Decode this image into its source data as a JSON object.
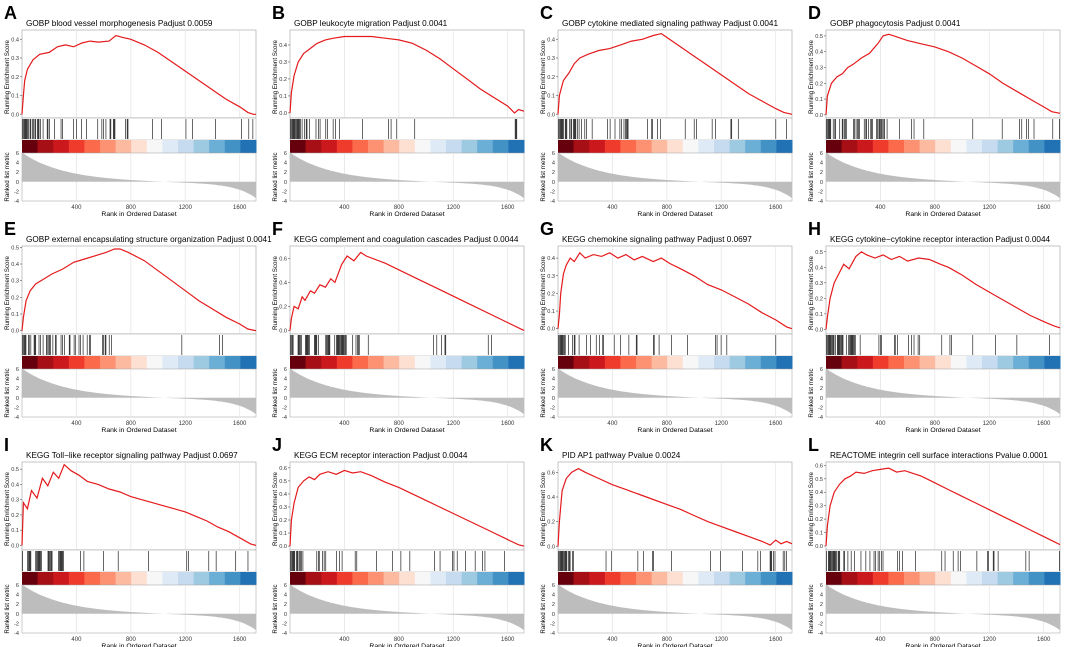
{
  "figure": {
    "description_free": true,
    "colors": {
      "curve": "#e41a1c",
      "hit_line": "#000000",
      "metric_fill": "#bdbdbd",
      "grid": "#e6e6e6",
      "heat": [
        "#67000d",
        "#a50f15",
        "#cb181d",
        "#ef3b2c",
        "#fb6a4a",
        "#fc9272",
        "#fcbba1",
        "#fee0d2",
        "#f7f7f7",
        "#deebf7",
        "#c6dbef",
        "#9ecae1",
        "#6baed6",
        "#4292c6",
        "#2171b5"
      ]
    }
  },
  "chart_data": [
    {
      "letter": "A",
      "type": "line",
      "title": "GOBP blood vessel morphogenesis Padjust 0.0059",
      "ylabel": "Running Enrichment Score",
      "metric_ylabel": "Ranked list metric",
      "xlabel": "Rank in Ordered Dataset",
      "xticks": [
        400,
        800,
        1200,
        1600
      ],
      "xlim": [
        0,
        1720
      ],
      "ylim": [
        -0.02,
        0.46
      ],
      "yticks": [
        0.0,
        0.1,
        0.2,
        0.3,
        0.4
      ],
      "metric_ylim": [
        -4,
        6
      ],
      "metric_yticks": [
        -4,
        -2,
        0,
        2,
        4,
        6
      ],
      "es_curve": {
        "x": [
          0,
          10,
          20,
          40,
          80,
          130,
          200,
          260,
          320,
          380,
          440,
          500,
          560,
          640,
          690,
          740,
          800,
          900,
          1000,
          1100,
          1200,
          1300,
          1400,
          1500,
          1600,
          1660,
          1700,
          1720
        ],
        "y": [
          0.0,
          0.1,
          0.18,
          0.24,
          0.29,
          0.32,
          0.33,
          0.36,
          0.37,
          0.36,
          0.38,
          0.39,
          0.385,
          0.39,
          0.42,
          0.41,
          0.4,
          0.37,
          0.33,
          0.28,
          0.23,
          0.18,
          0.13,
          0.08,
          0.04,
          0.01,
          0.0,
          0.0
        ]
      }
    },
    {
      "letter": "B",
      "type": "line",
      "title": "GOBP leukocyte migration Padjust 0.0041",
      "ylabel": "Running Enrichment Score",
      "metric_ylabel": "Ranked list metric",
      "xlabel": "Rank in Ordered Dataset",
      "xticks": [
        400,
        800,
        1200,
        1600
      ],
      "xlim": [
        0,
        1720
      ],
      "ylim": [
        -0.03,
        0.5
      ],
      "yticks": [
        0.0,
        0.1,
        0.2,
        0.3,
        0.4
      ],
      "metric_ylim": [
        -4,
        6
      ],
      "metric_yticks": [
        -4,
        -2,
        0,
        2,
        4,
        6
      ],
      "es_curve": {
        "x": [
          0,
          10,
          30,
          60,
          100,
          150,
          200,
          260,
          320,
          400,
          500,
          600,
          700,
          800,
          900,
          1000,
          1100,
          1200,
          1300,
          1400,
          1500,
          1600,
          1650,
          1680,
          1720
        ],
        "y": [
          0.0,
          0.12,
          0.22,
          0.3,
          0.35,
          0.38,
          0.41,
          0.43,
          0.44,
          0.45,
          0.45,
          0.45,
          0.44,
          0.43,
          0.41,
          0.37,
          0.32,
          0.26,
          0.2,
          0.14,
          0.09,
          0.04,
          0.0,
          0.02,
          0.01
        ]
      }
    },
    {
      "letter": "C",
      "type": "line",
      "title": "GOBP cytokine mediated signaling pathway Padjust 0.0041",
      "ylabel": "Running Enrichment Score",
      "metric_ylabel": "Ranked list metric",
      "xlabel": "Rank in Ordered Dataset",
      "xticks": [
        400,
        800,
        1200,
        1600
      ],
      "xlim": [
        0,
        1720
      ],
      "ylim": [
        -0.02,
        0.46
      ],
      "yticks": [
        0.0,
        0.1,
        0.2,
        0.3,
        0.4
      ],
      "metric_ylim": [
        -4,
        6
      ],
      "metric_yticks": [
        -4,
        -2,
        0,
        2,
        4,
        6
      ],
      "es_curve": {
        "x": [
          0,
          10,
          40,
          80,
          120,
          160,
          220,
          300,
          380,
          460,
          540,
          620,
          700,
          760,
          800,
          900,
          1000,
          1100,
          1200,
          1300,
          1400,
          1500,
          1600,
          1660,
          1720
        ],
        "y": [
          0.0,
          0.1,
          0.18,
          0.22,
          0.27,
          0.3,
          0.32,
          0.34,
          0.35,
          0.37,
          0.39,
          0.4,
          0.42,
          0.43,
          0.41,
          0.36,
          0.31,
          0.26,
          0.21,
          0.16,
          0.11,
          0.07,
          0.03,
          0.01,
          0.0
        ]
      }
    },
    {
      "letter": "D",
      "type": "line",
      "title": "GOBP phagocytosis Padjust 0.0041",
      "ylabel": "Running Enrichment Score",
      "metric_ylabel": "Ranked list metric",
      "xlabel": "Rank in Ordered Dataset",
      "xticks": [
        400,
        800,
        1200,
        1600
      ],
      "xlim": [
        0,
        1720
      ],
      "ylim": [
        -0.02,
        0.55
      ],
      "yticks": [
        0.0,
        0.1,
        0.2,
        0.3,
        0.4,
        0.5
      ],
      "metric_ylim": [
        -4,
        6
      ],
      "metric_yticks": [
        -4,
        -2,
        0,
        2,
        4,
        6
      ],
      "es_curve": {
        "x": [
          0,
          10,
          40,
          80,
          120,
          160,
          200,
          260,
          320,
          380,
          420,
          460,
          500,
          600,
          700,
          800,
          900,
          1000,
          1100,
          1200,
          1300,
          1400,
          1500,
          1600,
          1660,
          1720
        ],
        "y": [
          0.0,
          0.12,
          0.2,
          0.24,
          0.26,
          0.3,
          0.32,
          0.36,
          0.39,
          0.45,
          0.5,
          0.51,
          0.5,
          0.47,
          0.45,
          0.43,
          0.4,
          0.36,
          0.31,
          0.26,
          0.2,
          0.15,
          0.1,
          0.05,
          0.02,
          0.01
        ]
      }
    },
    {
      "letter": "E",
      "type": "line",
      "title": "GOBP external encapsulating structure organization Padjust 0.0041",
      "ylabel": "Running Enrichment Score",
      "metric_ylabel": "Ranked list metric",
      "xlabel": "Rank in Ordered Dataset",
      "xticks": [
        400,
        800,
        1200,
        1600
      ],
      "xlim": [
        0,
        1720
      ],
      "ylim": [
        -0.02,
        0.52
      ],
      "yticks": [
        0.0,
        0.1,
        0.2,
        0.3,
        0.4,
        0.5
      ],
      "metric_ylim": [
        -4,
        6
      ],
      "metric_yticks": [
        -4,
        -2,
        0,
        2,
        4,
        6
      ],
      "es_curve": {
        "x": [
          0,
          10,
          30,
          60,
          100,
          160,
          220,
          300,
          380,
          460,
          540,
          620,
          680,
          720,
          780,
          900,
          1000,
          1100,
          1200,
          1300,
          1400,
          1500,
          1600,
          1660,
          1720
        ],
        "y": [
          0.0,
          0.08,
          0.18,
          0.24,
          0.28,
          0.31,
          0.34,
          0.37,
          0.41,
          0.43,
          0.45,
          0.47,
          0.49,
          0.49,
          0.47,
          0.42,
          0.36,
          0.3,
          0.24,
          0.18,
          0.13,
          0.08,
          0.04,
          0.01,
          0.0
        ]
      }
    },
    {
      "letter": "F",
      "type": "line",
      "title": "KEGG complement and coagulation cascades Padjust 0.0044",
      "ylabel": "Running Enrichment Score",
      "metric_ylabel": "Ranked list metric",
      "xlabel": "Rank in Ordered Dataset",
      "xticks": [
        400,
        800,
        1200,
        1600
      ],
      "xlim": [
        0,
        1720
      ],
      "ylim": [
        -0.03,
        0.72
      ],
      "yticks": [
        0.0,
        0.2,
        0.4,
        0.6
      ],
      "metric_ylim": [
        -4,
        6
      ],
      "metric_yticks": [
        -4,
        -2,
        0,
        2,
        4,
        6
      ],
      "es_curve": {
        "x": [
          0,
          10,
          30,
          60,
          90,
          110,
          150,
          180,
          220,
          260,
          300,
          330,
          380,
          420,
          470,
          520,
          560,
          700,
          900,
          1100,
          1300,
          1500,
          1700,
          1720
        ],
        "y": [
          0.0,
          0.1,
          0.2,
          0.18,
          0.28,
          0.25,
          0.33,
          0.31,
          0.38,
          0.36,
          0.43,
          0.4,
          0.55,
          0.62,
          0.58,
          0.65,
          0.62,
          0.56,
          0.45,
          0.34,
          0.23,
          0.12,
          0.01,
          0.0
        ]
      }
    },
    {
      "letter": "G",
      "type": "line",
      "title": "KEGG chemokine signaling pathway Padjust 0.0697",
      "ylabel": "Running Enrichment Score",
      "metric_ylabel": "Ranked list metric",
      "xlabel": "Rank in Ordered Dataset",
      "xticks": [
        400,
        800,
        1200,
        1600
      ],
      "xlim": [
        0,
        1720
      ],
      "ylim": [
        -0.03,
        0.48
      ],
      "yticks": [
        0.0,
        0.1,
        0.2,
        0.3,
        0.4
      ],
      "metric_ylim": [
        -4,
        6
      ],
      "metric_yticks": [
        -4,
        -2,
        0,
        2,
        4,
        6
      ],
      "es_curve": {
        "x": [
          0,
          10,
          20,
          40,
          60,
          90,
          120,
          160,
          200,
          260,
          320,
          380,
          440,
          500,
          560,
          620,
          700,
          760,
          820,
          900,
          1000,
          1100,
          1200,
          1300,
          1400,
          1500,
          1600,
          1680,
          1720
        ],
        "y": [
          0.0,
          0.08,
          0.2,
          0.31,
          0.36,
          0.4,
          0.38,
          0.43,
          0.4,
          0.42,
          0.41,
          0.43,
          0.4,
          0.42,
          0.39,
          0.41,
          0.38,
          0.4,
          0.37,
          0.34,
          0.3,
          0.25,
          0.22,
          0.18,
          0.14,
          0.09,
          0.05,
          0.01,
          0.0
        ]
      }
    },
    {
      "letter": "H",
      "type": "line",
      "title": "KEGG cytokine−cytokine receptor interaction Padjust 0.0044",
      "ylabel": "Running Enrichment Score",
      "metric_ylabel": "Ranked list metric",
      "xlabel": "Rank in Ordered Dataset",
      "xticks": [
        400,
        800,
        1200,
        1600
      ],
      "xlim": [
        0,
        1720
      ],
      "ylim": [
        -0.03,
        0.55
      ],
      "yticks": [
        0.0,
        0.1,
        0.2,
        0.3,
        0.4,
        0.5
      ],
      "metric_ylim": [
        -4,
        6
      ],
      "metric_yticks": [
        -4,
        -2,
        0,
        2,
        4,
        6
      ],
      "es_curve": {
        "x": [
          0,
          10,
          30,
          60,
          90,
          130,
          170,
          220,
          260,
          300,
          360,
          420,
          480,
          540,
          600,
          680,
          760,
          840,
          900,
          1000,
          1100,
          1200,
          1300,
          1400,
          1500,
          1600,
          1680,
          1720
        ],
        "y": [
          0.0,
          0.08,
          0.2,
          0.3,
          0.35,
          0.42,
          0.39,
          0.47,
          0.5,
          0.48,
          0.46,
          0.48,
          0.45,
          0.47,
          0.44,
          0.46,
          0.45,
          0.42,
          0.4,
          0.35,
          0.29,
          0.24,
          0.19,
          0.14,
          0.09,
          0.05,
          0.02,
          0.01
        ]
      }
    },
    {
      "letter": "I",
      "type": "line",
      "title": "KEGG Toll−like receptor signaling pathway Padjust 0.0697",
      "ylabel": "Running Enrichment Score",
      "metric_ylabel": "Ranked list metric",
      "xlabel": "Rank in Ordered Dataset",
      "xticks": [
        400,
        800,
        1200,
        1600
      ],
      "xlim": [
        0,
        1720
      ],
      "ylim": [
        -0.03,
        0.56
      ],
      "yticks": [
        0.0,
        0.1,
        0.2,
        0.3,
        0.4,
        0.5
      ],
      "metric_ylim": [
        -4,
        6
      ],
      "metric_yticks": [
        -4,
        -2,
        0,
        2,
        4,
        6
      ],
      "es_curve": {
        "x": [
          0,
          10,
          40,
          70,
          110,
          150,
          190,
          230,
          270,
          310,
          360,
          420,
          480,
          560,
          640,
          720,
          800,
          880,
          960,
          1040,
          1120,
          1200,
          1280,
          1360,
          1440,
          1520,
          1600,
          1680,
          1720
        ],
        "y": [
          0.0,
          0.28,
          0.24,
          0.36,
          0.31,
          0.44,
          0.39,
          0.48,
          0.44,
          0.53,
          0.49,
          0.46,
          0.42,
          0.4,
          0.37,
          0.35,
          0.32,
          0.3,
          0.28,
          0.26,
          0.24,
          0.22,
          0.19,
          0.16,
          0.12,
          0.09,
          0.05,
          0.01,
          0.0
        ]
      }
    },
    {
      "letter": "J",
      "type": "line",
      "title": "KEGG ECM receptor interaction Padjust 0.0044",
      "ylabel": "Running Enrichment Score",
      "metric_ylabel": "Ranked list metric",
      "xlabel": "Rank in Ordered Dataset",
      "xticks": [
        400,
        800,
        1200,
        1600
      ],
      "xlim": [
        0,
        1720
      ],
      "ylim": [
        -0.03,
        0.66
      ],
      "yticks": [
        0.0,
        0.1,
        0.2,
        0.3,
        0.4,
        0.5,
        0.6
      ],
      "metric_ylim": [
        -4,
        6
      ],
      "metric_yticks": [
        -4,
        -2,
        0,
        2,
        4,
        6
      ],
      "es_curve": {
        "x": [
          0,
          10,
          30,
          60,
          100,
          140,
          180,
          220,
          280,
          340,
          400,
          460,
          520,
          600,
          700,
          800,
          900,
          1000,
          1100,
          1200,
          1300,
          1400,
          1500,
          1600,
          1680,
          1720
        ],
        "y": [
          0.0,
          0.2,
          0.33,
          0.45,
          0.5,
          0.53,
          0.51,
          0.55,
          0.57,
          0.55,
          0.58,
          0.56,
          0.57,
          0.54,
          0.49,
          0.45,
          0.4,
          0.35,
          0.3,
          0.25,
          0.2,
          0.15,
          0.1,
          0.05,
          0.01,
          0.0
        ]
      }
    },
    {
      "letter": "K",
      "type": "line",
      "title": "PID AP1 pathway Pvalue 0.0024",
      "ylabel": "Running Enrichment Score",
      "metric_ylabel": "Ranked list metric",
      "xlabel": "Rank in Ordered Dataset",
      "xticks": [
        400,
        800,
        1200,
        1600
      ],
      "xlim": [
        0,
        1720
      ],
      "ylim": [
        -0.03,
        0.7
      ],
      "yticks": [
        0.0,
        0.2,
        0.4,
        0.6
      ],
      "metric_ylim": [
        -4,
        6
      ],
      "metric_yticks": [
        -4,
        -2,
        0,
        2,
        4,
        6
      ],
      "es_curve": {
        "x": [
          0,
          10,
          30,
          60,
          100,
          150,
          200,
          300,
          400,
          500,
          600,
          700,
          800,
          900,
          1000,
          1100,
          1200,
          1300,
          1400,
          1500,
          1560,
          1600,
          1640,
          1680,
          1720
        ],
        "y": [
          0.0,
          0.2,
          0.45,
          0.55,
          0.6,
          0.63,
          0.6,
          0.55,
          0.5,
          0.46,
          0.42,
          0.38,
          0.34,
          0.3,
          0.25,
          0.2,
          0.16,
          0.12,
          0.08,
          0.04,
          0.01,
          0.05,
          0.02,
          0.04,
          0.02
        ]
      }
    },
    {
      "letter": "L",
      "type": "line",
      "title": "REACTOME integrin cell surface interactions Pvalue 0.0001",
      "ylabel": "Running Enrichment Score",
      "metric_ylabel": "Ranked list metric",
      "xlabel": "Rank in Ordered Dataset",
      "xticks": [
        400,
        800,
        1200,
        1600
      ],
      "xlim": [
        0,
        1720
      ],
      "ylim": [
        -0.03,
        0.64
      ],
      "yticks": [
        0.0,
        0.1,
        0.2,
        0.3,
        0.4,
        0.5,
        0.6
      ],
      "metric_ylim": [
        -4,
        6
      ],
      "metric_yticks": [
        -4,
        -2,
        0,
        2,
        4,
        6
      ],
      "es_curve": {
        "x": [
          0,
          10,
          30,
          60,
          100,
          140,
          180,
          220,
          280,
          340,
          400,
          460,
          520,
          580,
          640,
          700,
          800,
          900,
          1000,
          1100,
          1200,
          1300,
          1400,
          1500,
          1600,
          1680,
          1720
        ],
        "y": [
          0.0,
          0.15,
          0.3,
          0.4,
          0.46,
          0.5,
          0.52,
          0.55,
          0.54,
          0.56,
          0.57,
          0.58,
          0.55,
          0.56,
          0.54,
          0.52,
          0.47,
          0.42,
          0.37,
          0.32,
          0.27,
          0.22,
          0.17,
          0.12,
          0.07,
          0.03,
          0.01
        ]
      }
    }
  ]
}
